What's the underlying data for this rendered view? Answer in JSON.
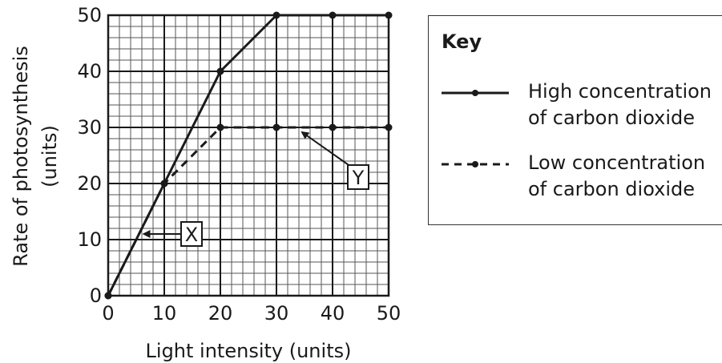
{
  "chart_data": {
    "type": "line",
    "xlabel": "Light intensity (units)",
    "ylabel_line1": "Rate of photosynthesis",
    "ylabel_line2": "(units)",
    "xlim": [
      0,
      50
    ],
    "ylim": [
      0,
      50
    ],
    "x_ticks": [
      0,
      10,
      20,
      30,
      40,
      50
    ],
    "y_ticks": [
      0,
      10,
      20,
      30,
      40,
      50
    ],
    "grid": true,
    "legend_position": "right",
    "series": [
      {
        "name": "High concentration of carbon dioxide",
        "style": "solid",
        "x": [
          0,
          10,
          20,
          30,
          40,
          50
        ],
        "y": [
          0,
          20,
          40,
          50,
          50,
          50
        ]
      },
      {
        "name": "Low concentration of carbon dioxide",
        "style": "dashed",
        "x": [
          0,
          10,
          20,
          30,
          40,
          50
        ],
        "y": [
          0,
          20,
          30,
          30,
          30,
          30
        ]
      }
    ],
    "annotations": [
      {
        "label": "X",
        "arrow_to": [
          5.5,
          11
        ]
      },
      {
        "label": "Y",
        "arrow_to": [
          34,
          30
        ]
      }
    ]
  },
  "legend": {
    "title": "Key",
    "items": [
      {
        "line1": "High concentration",
        "line2": "of carbon dioxide"
      },
      {
        "line1": "Low concentration",
        "line2": "of carbon dioxide"
      }
    ]
  }
}
